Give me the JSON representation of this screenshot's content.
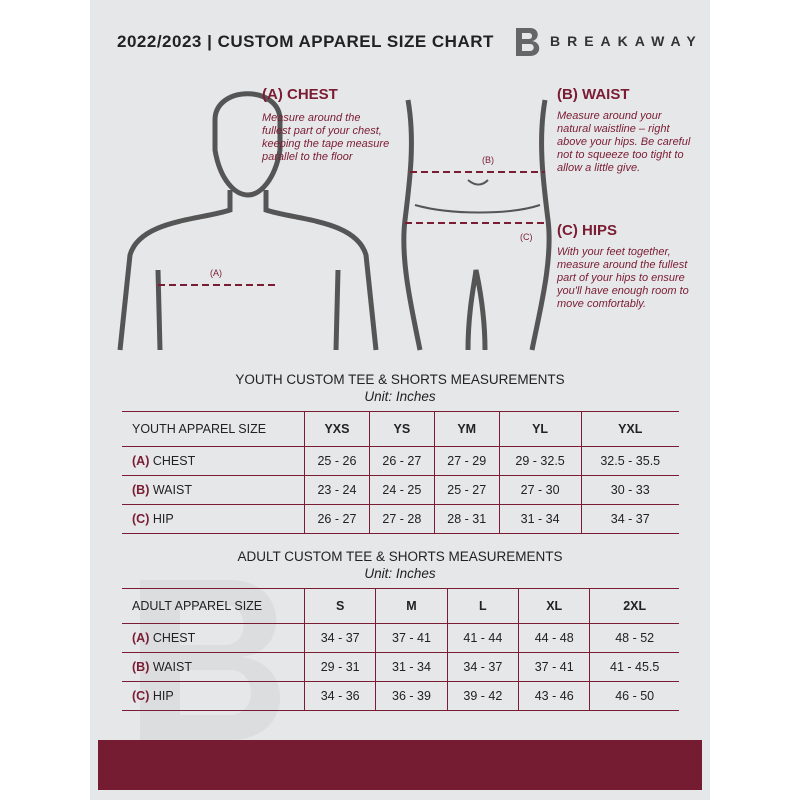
{
  "header": {
    "title": "2022/2023  |  CUSTOM APPAREL SIZE CHART",
    "brand": "BREAKAWAY"
  },
  "accent_color": "#7a1c33",
  "measures": {
    "chest": {
      "marker": "(A)",
      "title": "(A) CHEST",
      "desc": "Measure around the fullest part of your chest, keeping the tape measure parallel to the floor"
    },
    "waist": {
      "marker": "(B)",
      "title": "(B) WAIST",
      "desc": "Measure around your natural waistline – right above your hips. Be careful not to squeeze too tight to allow a little give."
    },
    "hips": {
      "marker": "(C)",
      "title": "(C) HIPS",
      "desc": "With your feet together, measure around the fullest part of your hips to ensure you'll have enough room to move comfortably."
    }
  },
  "youth": {
    "title": "YOUTH CUSTOM TEE & SHORTS MEASUREMENTS",
    "unit": "Unit: Inches",
    "header": "YOUTH APPAREL SIZE",
    "sizes": [
      "YXS",
      "YS",
      "YM",
      "YL",
      "YXL"
    ],
    "rows": [
      {
        "code": "(A)",
        "name": "CHEST",
        "values": [
          "25 - 26",
          "26 - 27",
          "27 - 29",
          "29 - 32.5",
          "32.5 - 35.5"
        ]
      },
      {
        "code": "(B)",
        "name": "WAIST",
        "values": [
          "23 - 24",
          "24 - 25",
          "25 - 27",
          "27 - 30",
          "30 - 33"
        ]
      },
      {
        "code": "(C)",
        "name": "HIP",
        "values": [
          "26 - 27",
          "27 - 28",
          "28 - 31",
          "31 - 34",
          "34 - 37"
        ]
      }
    ]
  },
  "adult": {
    "title": "ADULT CUSTOM TEE & SHORTS MEASUREMENTS",
    "unit": "Unit: Inches",
    "header": "ADULT APPAREL SIZE",
    "sizes": [
      "S",
      "M",
      "L",
      "XL",
      "2XL"
    ],
    "rows": [
      {
        "code": "(A)",
        "name": "CHEST",
        "values": [
          "34 - 37",
          "37 - 41",
          "41 - 44",
          "44 - 48",
          "48 - 52"
        ]
      },
      {
        "code": "(B)",
        "name": "WAIST",
        "values": [
          "29 - 31",
          "31 - 34",
          "34 - 37",
          "37 - 41",
          "41 - 45.5"
        ]
      },
      {
        "code": "(C)",
        "name": "HIP",
        "values": [
          "34 - 36",
          "36 - 39",
          "39 - 42",
          "43 - 46",
          "46 - 50"
        ]
      }
    ]
  }
}
